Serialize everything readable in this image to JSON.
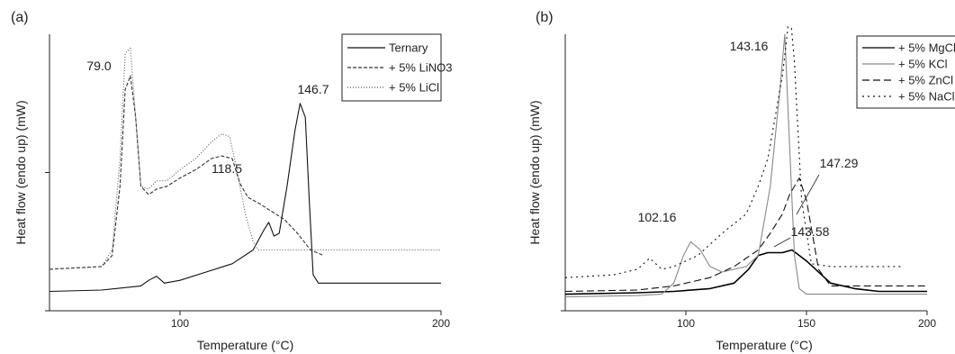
{
  "chart_data": [
    {
      "type": "line",
      "panel_label": "(a)",
      "xlabel": "Temperature (°C)",
      "ylabel": "Heat flow (endo up) (mW)",
      "xlim": [
        50,
        200
      ],
      "ylim": [
        0,
        1
      ],
      "x_ticks": [
        100,
        200
      ],
      "grid": false,
      "legend_position": "top-right",
      "annotations": [
        {
          "text": "79.0",
          "x": 80,
          "y": 0.96
        },
        {
          "text": "118.5",
          "x": 118,
          "y": 0.61
        },
        {
          "text": "146.7",
          "x": 147,
          "y": 0.82
        }
      ],
      "series": [
        {
          "name": "Ternary",
          "color": "#111111",
          "dash": "",
          "x": [
            50,
            70,
            85,
            88,
            91,
            94,
            100,
            110,
            120,
            128,
            132,
            134,
            136,
            138,
            141,
            144,
            146,
            148,
            149.5,
            151,
            153,
            160,
            180,
            200
          ],
          "y": [
            0.07,
            0.075,
            0.09,
            0.11,
            0.125,
            0.1,
            0.11,
            0.14,
            0.17,
            0.22,
            0.29,
            0.32,
            0.27,
            0.28,
            0.45,
            0.65,
            0.75,
            0.7,
            0.4,
            0.13,
            0.1,
            0.1,
            0.1,
            0.1
          ]
        },
        {
          "name": "+ 5% LiNO3",
          "color": "#333333",
          "dash": "4,2",
          "x": [
            50,
            70,
            74,
            77,
            79,
            81,
            83,
            85,
            88,
            91,
            95,
            100,
            106,
            112,
            116,
            120,
            123,
            126,
            130,
            140,
            145,
            150,
            155
          ],
          "y": [
            0.15,
            0.16,
            0.2,
            0.45,
            0.8,
            0.85,
            0.7,
            0.45,
            0.42,
            0.44,
            0.45,
            0.48,
            0.51,
            0.55,
            0.56,
            0.55,
            0.46,
            0.41,
            0.39,
            0.33,
            0.28,
            0.22,
            0.2
          ]
        },
        {
          "name": "+ 5% LiCl",
          "color": "#555555",
          "dash": "1,2",
          "x": [
            50,
            70,
            74,
            77,
            79,
            81,
            83,
            85,
            88,
            91,
            95,
            100,
            106,
            112,
            116,
            119,
            122,
            125,
            128,
            130,
            140,
            160,
            200
          ],
          "y": [
            0.15,
            0.16,
            0.22,
            0.55,
            0.93,
            0.95,
            0.7,
            0.45,
            0.44,
            0.47,
            0.47,
            0.51,
            0.55,
            0.61,
            0.64,
            0.63,
            0.5,
            0.35,
            0.25,
            0.22,
            0.22,
            0.22,
            0.22
          ]
        }
      ]
    },
    {
      "type": "line",
      "panel_label": "(b)",
      "xlabel": "Temperature (°C)",
      "ylabel": "Heat flow (endo up) (mW)",
      "xlim": [
        50,
        200
      ],
      "ylim": [
        0,
        1
      ],
      "x_ticks": [
        100,
        150,
        200
      ],
      "grid": false,
      "legend_position": "top-right",
      "annotations": [
        {
          "text": "143.16",
          "x": 141,
          "y": 0.98
        },
        {
          "text": "102.16",
          "x": 102,
          "y": 0.32
        },
        {
          "text": "147.29",
          "x": 147,
          "y": 0.47
        },
        {
          "text": "143.58",
          "x": 144,
          "y": 0.26
        }
      ],
      "series": [
        {
          "name": "+ 5% MgCl",
          "color": "#000000",
          "dash": "",
          "x": [
            50,
            80,
            95,
            110,
            120,
            126,
            130,
            134,
            140,
            144,
            147,
            150,
            160,
            170,
            180,
            190,
            200
          ],
          "y": [
            0.06,
            0.065,
            0.07,
            0.08,
            0.1,
            0.15,
            0.2,
            0.21,
            0.21,
            0.22,
            0.2,
            0.18,
            0.1,
            0.08,
            0.07,
            0.07,
            0.07
          ]
        },
        {
          "name": "+ 5% KCl",
          "color": "#888888",
          "dash": "",
          "x": [
            50,
            80,
            90,
            95,
            99,
            102,
            106,
            110,
            115,
            125,
            130,
            135,
            139,
            141,
            143,
            145,
            147,
            150,
            160,
            200
          ],
          "y": [
            0.05,
            0.055,
            0.06,
            0.1,
            0.2,
            0.25,
            0.22,
            0.16,
            0.14,
            0.16,
            0.2,
            0.45,
            0.8,
            1.0,
            0.6,
            0.2,
            0.08,
            0.06,
            0.06,
            0.06
          ]
        },
        {
          "name": "+ 5% ZnCl",
          "color": "#111111",
          "dash": "8,4",
          "x": [
            50,
            80,
            95,
            110,
            120,
            130,
            135,
            140,
            143,
            147,
            150,
            155,
            160,
            180,
            200
          ],
          "y": [
            0.07,
            0.075,
            0.09,
            0.12,
            0.16,
            0.22,
            0.28,
            0.35,
            0.42,
            0.48,
            0.4,
            0.15,
            0.09,
            0.09,
            0.09
          ]
        },
        {
          "name": "+ 5% NaCl",
          "color": "#111111",
          "dash": "2,4",
          "x": [
            50,
            70,
            80,
            85,
            90,
            95,
            105,
            115,
            125,
            130,
            134,
            137,
            140,
            142,
            143,
            145,
            148,
            152,
            160,
            190
          ],
          "y": [
            0.12,
            0.13,
            0.15,
            0.19,
            0.15,
            0.16,
            0.2,
            0.28,
            0.35,
            0.45,
            0.55,
            0.7,
            0.85,
            1.0,
            1.1,
            0.9,
            0.4,
            0.17,
            0.16,
            0.16
          ]
        }
      ]
    }
  ]
}
